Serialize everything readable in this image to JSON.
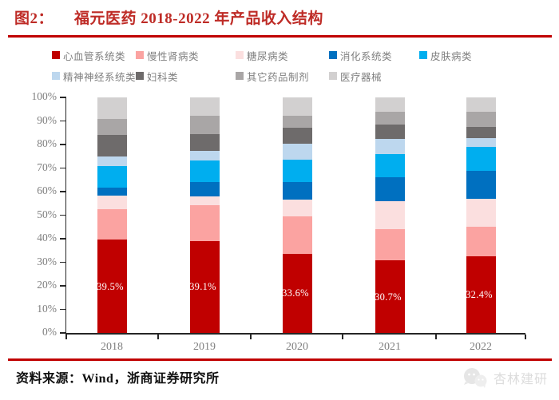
{
  "header": {
    "figure_label": "图2：",
    "title": "福元医药 2018-2022 年产品收入结构"
  },
  "footer": {
    "source": "资料来源：Wind，浙商证券研究所",
    "watermark": "杏林建研"
  },
  "colors": {
    "title_red": "#be2b26",
    "rule_red": "#c00000",
    "axis": "#262626",
    "axis_text": "#7f7f7f",
    "watermark_gray": "#dcdcdc"
  },
  "chart_data": {
    "type": "bar",
    "stacked": true,
    "percent_stacked": true,
    "title": "福元医药 2018-2022 年产品收入结构",
    "categories": [
      "2018",
      "2019",
      "2020",
      "2021",
      "2022"
    ],
    "series": [
      {
        "name": "心血管系统类",
        "color": "#c00000",
        "values": [
          39.5,
          39.1,
          33.6,
          30.7,
          32.4
        ],
        "data_labels": [
          "39.5%",
          "39.1%",
          "33.6%",
          "30.7%",
          "32.4%"
        ],
        "data_label_color": "#ffffff"
      },
      {
        "name": "慢性肾病类",
        "color": "#fba3a1",
        "values": [
          13.0,
          15.1,
          15.8,
          13.4,
          12.8
        ]
      },
      {
        "name": "糖尿病类",
        "color": "#fbdfdf",
        "values": [
          5.7,
          3.8,
          7.1,
          11.9,
          11.9
        ]
      },
      {
        "name": "消化系统类",
        "color": "#0070c0",
        "values": [
          3.6,
          6.2,
          7.7,
          10.2,
          11.8
        ]
      },
      {
        "name": "皮肤病类",
        "color": "#00aeef",
        "values": [
          9.2,
          8.9,
          9.5,
          9.6,
          10.0
        ]
      },
      {
        "name": "精神神经系统类",
        "color": "#bdd7ee",
        "values": [
          3.9,
          4.1,
          6.5,
          6.5,
          3.9
        ]
      },
      {
        "name": "妇科类",
        "color": "#6e6b6b",
        "values": [
          9.1,
          7.2,
          7.0,
          6.2,
          4.8
        ]
      },
      {
        "name": "其它药品制剂",
        "color": "#a9a6a6",
        "values": [
          6.9,
          7.7,
          4.9,
          5.4,
          6.2
        ]
      },
      {
        "name": "医疗器械",
        "color": "#d2d0d0",
        "values": [
          9.1,
          7.9,
          7.9,
          6.1,
          6.2
        ]
      }
    ],
    "ylabel": "",
    "xlabel": "",
    "y_axis": {
      "min": 0,
      "max": 100,
      "step": 10,
      "tick_labels": [
        "0%",
        "10%",
        "20%",
        "30%",
        "40%",
        "50%",
        "60%",
        "70%",
        "80%",
        "90%",
        "100%"
      ]
    },
    "legend_position": "top",
    "legend_rows": [
      [
        "心血管系统类",
        "慢性肾病类",
        "糖尿病类",
        "消化系统类",
        "皮肤病类"
      ],
      [
        "精神神经系统类",
        "妇科类",
        "其它药品制剂",
        "医疗器械"
      ]
    ],
    "grid": false
  }
}
